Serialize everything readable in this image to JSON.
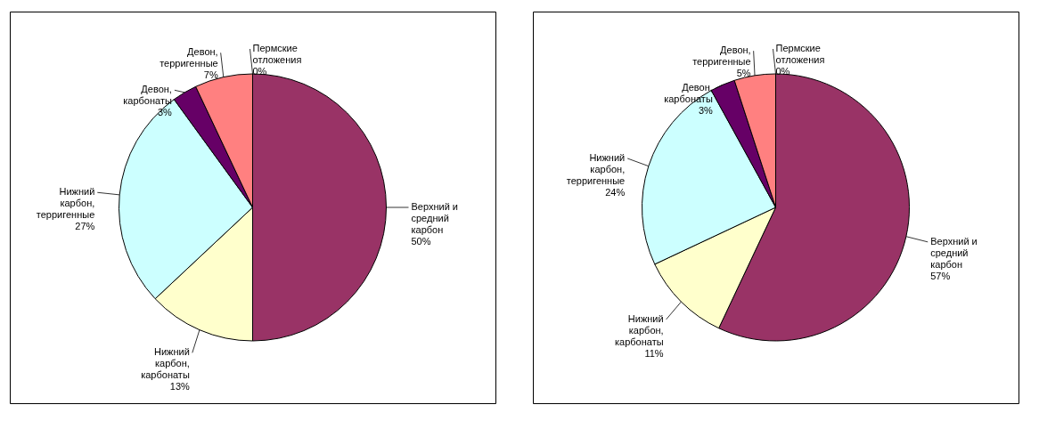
{
  "chart_data": [
    {
      "type": "pie",
      "categories": [
        "Верхний и\nсредний\nкарбон",
        "Нижний\nкарбон,\nкарбонаты",
        "Нижний\nкарбон,\nтерригенные",
        "Девон,\nкарбонаты",
        "Девон,\nтерригенные",
        "Пермские\nотложения"
      ],
      "values": [
        50,
        13,
        27,
        3,
        7,
        0
      ],
      "value_labels": [
        "50%",
        "13%",
        "27%",
        "3%",
        "7%",
        "0%"
      ],
      "colors": [
        "#993366",
        "#ffffcc",
        "#ccffff",
        "#660066",
        "#ff8080",
        "#9999ff"
      ]
    },
    {
      "type": "pie",
      "categories": [
        "Верхний и\nсредний\nкарбон",
        "Нижний\nкарбон,\nкарбонаты",
        "Нижний\nкарбон,\nтерригенные",
        "Девон,\nкарбонаты",
        "Девон,\nтерригенные",
        "Пермские\nотложения"
      ],
      "values": [
        57,
        11,
        24,
        3,
        5,
        0
      ],
      "value_labels": [
        "57%",
        "11%",
        "24%",
        "3%",
        "5%",
        "0%"
      ],
      "colors": [
        "#993366",
        "#ffffcc",
        "#ccffff",
        "#660066",
        "#ff8080",
        "#9999ff"
      ]
    }
  ]
}
